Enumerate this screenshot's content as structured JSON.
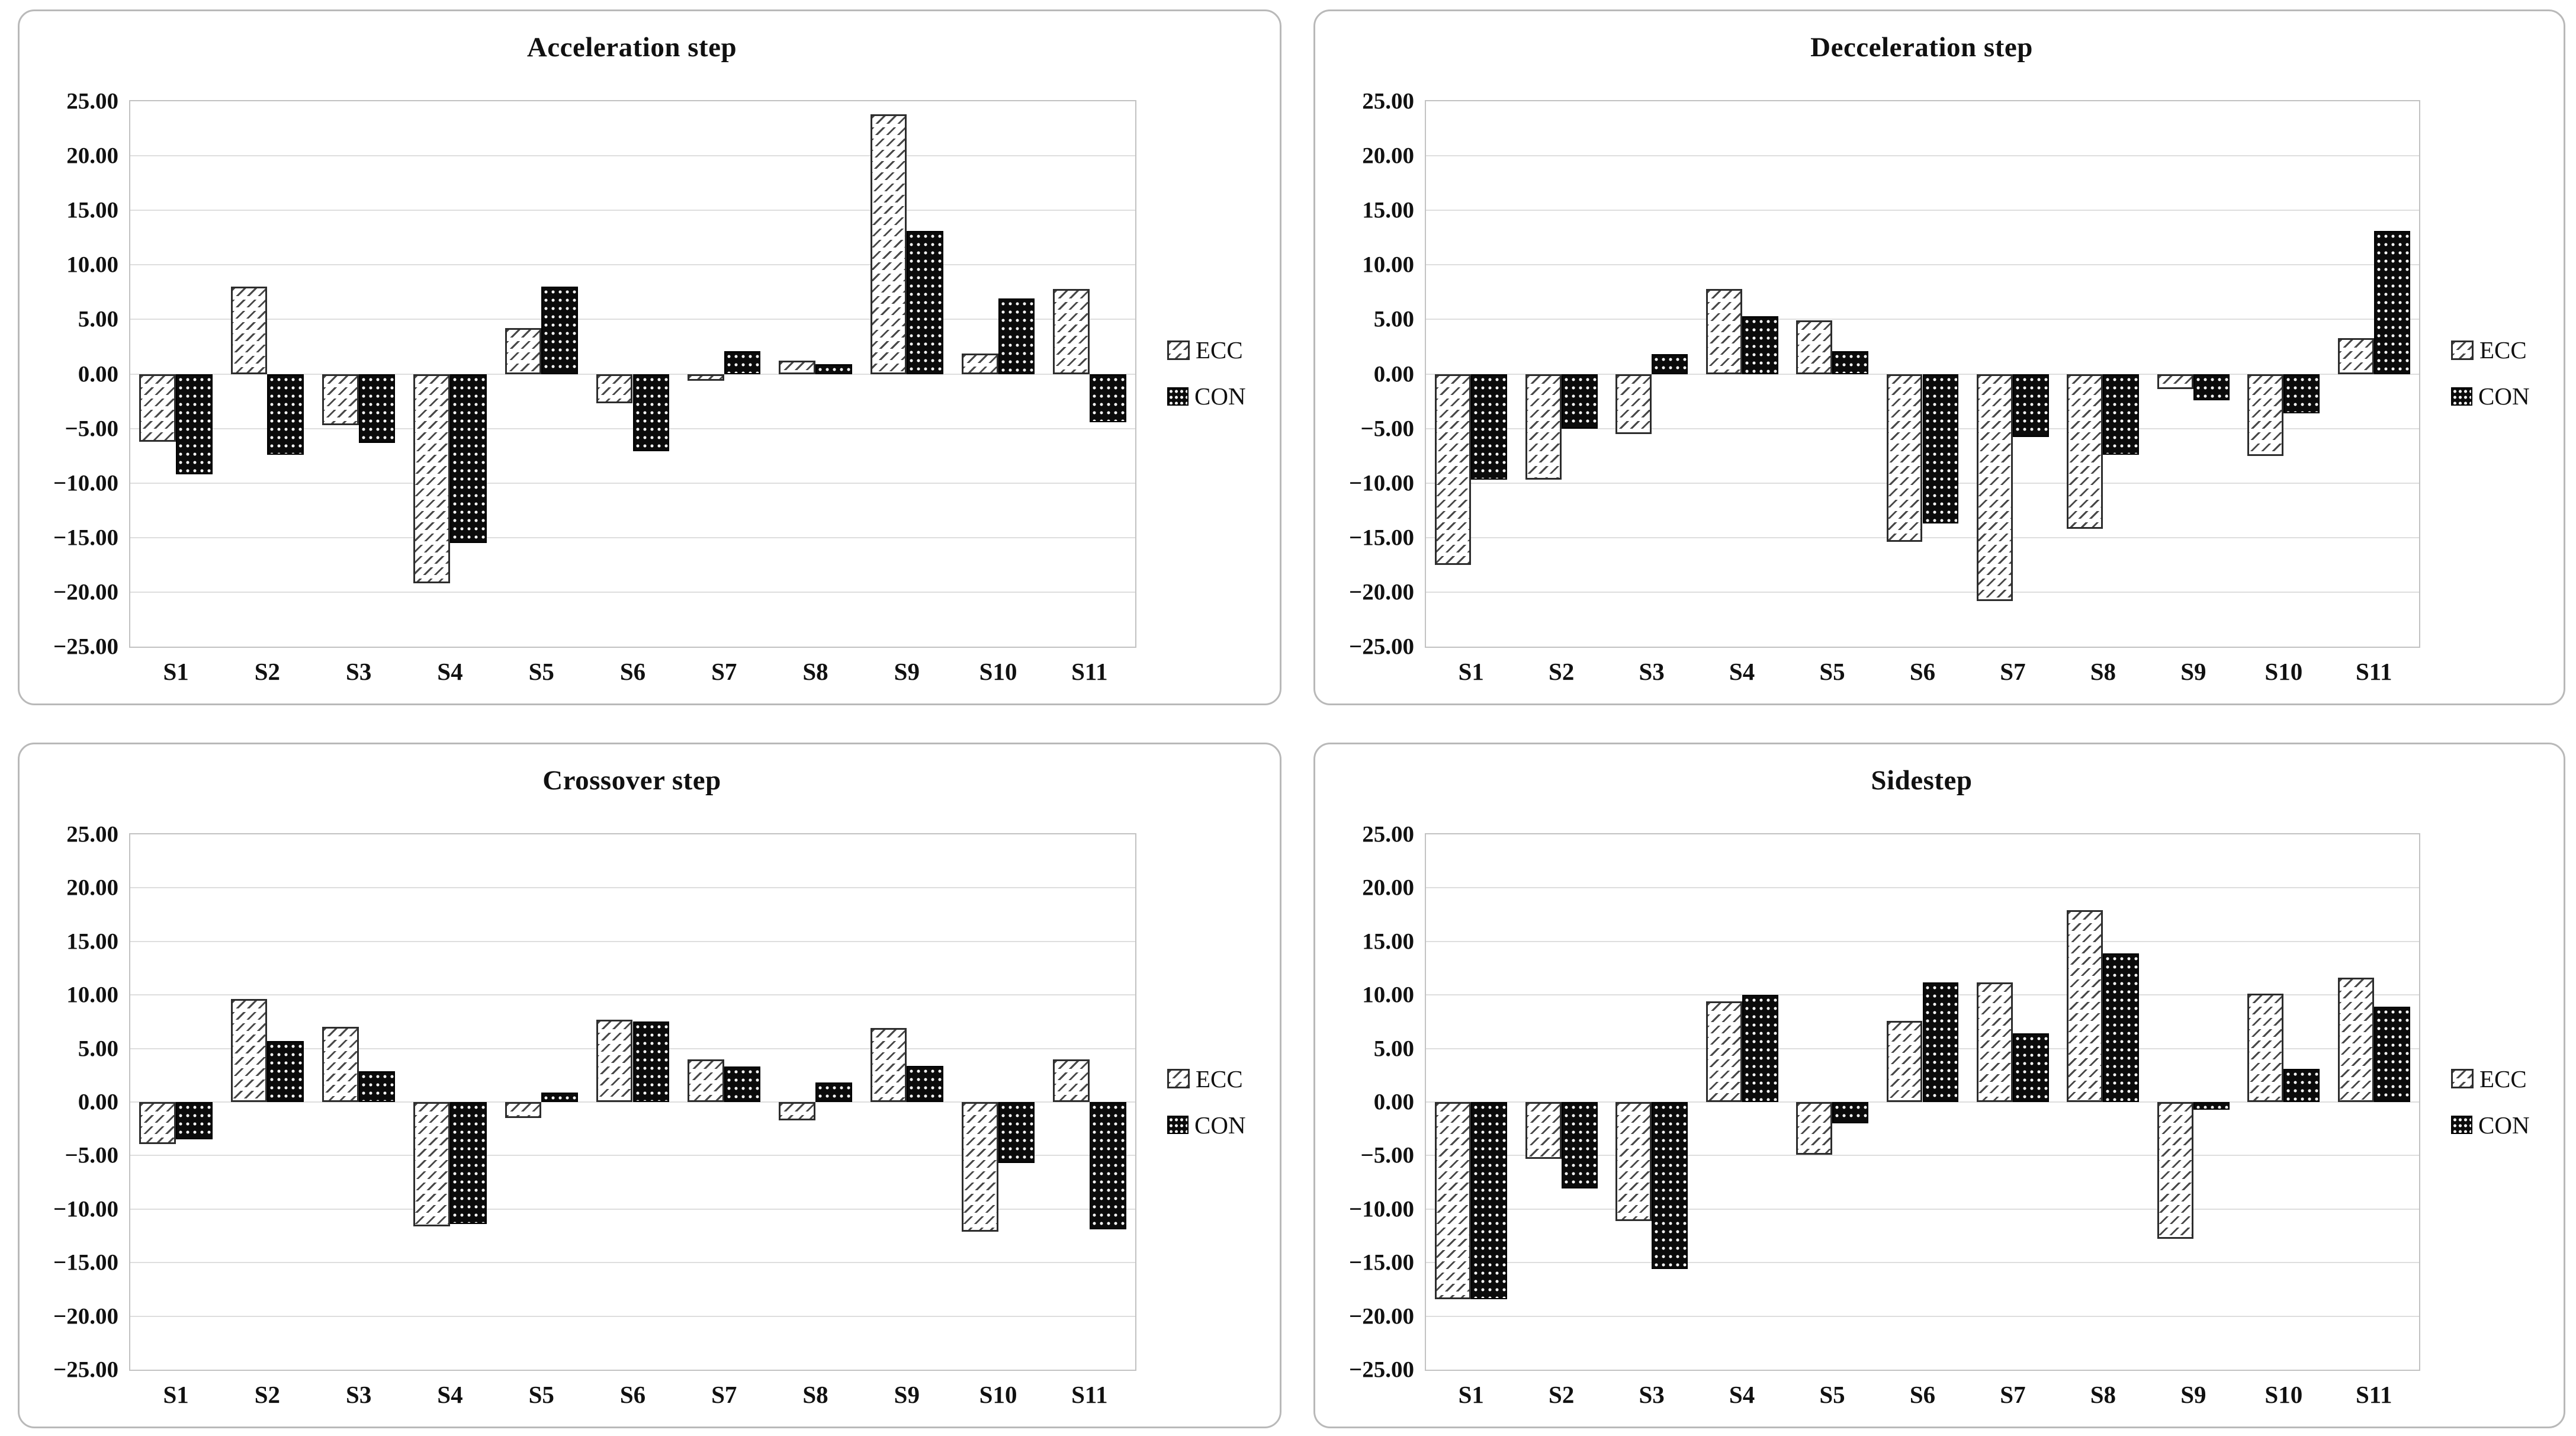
{
  "axis": {
    "ylim": [
      -25,
      25
    ],
    "y_tick_values": [
      25,
      20,
      15,
      10,
      5,
      0,
      -5,
      -10,
      -15,
      -20,
      -25
    ],
    "y_tick_labels": [
      "25.00",
      "20.00",
      "15.00",
      "10.00",
      "5.00",
      "0.00",
      "−5.00",
      "−10.00",
      "−15.00",
      "−20.00",
      "−25.00"
    ],
    "grid": true
  },
  "legend": {
    "position": "right",
    "items": [
      {
        "label": "ECC",
        "swatch": "hatched-white-square"
      },
      {
        "label": "CON",
        "swatch": "dotted-black-square"
      }
    ]
  },
  "colors": {
    "ecc_fill": "#ffffff",
    "ecc_hatch": "#474747",
    "con_fill": "#0b0b0b",
    "con_dot": "#ffffff",
    "gridline": "#dedede",
    "plot_border": "#c2c2c2",
    "card_border": "#b9b9b9",
    "text": "#111111"
  },
  "chart_data": [
    {
      "type": "bar",
      "title": "Acceleration step",
      "categories": [
        "S1",
        "S2",
        "S3",
        "S4",
        "S5",
        "S6",
        "S7",
        "S8",
        "S9",
        "S10",
        "S11"
      ],
      "series": [
        {
          "name": "ECC",
          "values": [
            -6.2,
            8.0,
            -4.7,
            -19.2,
            4.2,
            -2.7,
            -0.6,
            1.2,
            23.8,
            1.9,
            7.8
          ]
        },
        {
          "name": "CON",
          "values": [
            -9.2,
            -7.4,
            -6.3,
            -15.5,
            8.0,
            -7.1,
            2.1,
            0.9,
            13.1,
            6.9,
            -4.4
          ]
        }
      ],
      "xlabel": "",
      "ylabel": "",
      "ylim": [
        -25,
        25
      ],
      "legend_position": "right"
    },
    {
      "type": "bar",
      "title": "Decceleration step",
      "categories": [
        "S1",
        "S2",
        "S3",
        "S4",
        "S5",
        "S6",
        "S7",
        "S8",
        "S9",
        "S10",
        "S11"
      ],
      "series": [
        {
          "name": "ECC",
          "values": [
            -17.5,
            -9.7,
            -5.5,
            7.8,
            4.9,
            -15.4,
            -20.8,
            -14.2,
            -1.4,
            -7.5,
            3.3
          ]
        },
        {
          "name": "CON",
          "values": [
            -9.7,
            -5.0,
            1.8,
            5.3,
            2.1,
            -13.7,
            -5.8,
            -7.4,
            -2.4,
            -3.6,
            13.1
          ]
        }
      ],
      "xlabel": "",
      "ylabel": "",
      "ylim": [
        -25,
        25
      ],
      "legend_position": "right"
    },
    {
      "type": "bar",
      "title": "Crossover step",
      "categories": [
        "S1",
        "S2",
        "S3",
        "S4",
        "S5",
        "S6",
        "S7",
        "S8",
        "S9",
        "S10",
        "S11"
      ],
      "series": [
        {
          "name": "ECC",
          "values": [
            -3.9,
            9.6,
            7.0,
            -11.6,
            -1.5,
            7.7,
            4.0,
            -1.7,
            6.9,
            -12.1,
            4.0
          ]
        },
        {
          "name": "CON",
          "values": [
            -3.5,
            5.7,
            2.9,
            -11.4,
            0.9,
            7.5,
            3.3,
            1.8,
            3.4,
            -5.7,
            -11.9
          ]
        }
      ],
      "xlabel": "",
      "ylabel": "",
      "ylim": [
        -25,
        25
      ],
      "legend_position": "right"
    },
    {
      "type": "bar",
      "title": "Sidestep",
      "categories": [
        "S1",
        "S2",
        "S3",
        "S4",
        "S5",
        "S6",
        "S7",
        "S8",
        "S9",
        "S10",
        "S11"
      ],
      "series": [
        {
          "name": "ECC",
          "values": [
            -18.4,
            -5.3,
            -11.1,
            9.4,
            -4.9,
            7.6,
            11.2,
            17.9,
            -12.8,
            10.1,
            11.6
          ]
        },
        {
          "name": "CON",
          "values": [
            -18.4,
            -8.1,
            -15.6,
            10.0,
            -2.0,
            11.2,
            6.4,
            13.9,
            -0.7,
            3.1,
            8.9
          ]
        }
      ],
      "xlabel": "",
      "ylabel": "",
      "ylim": [
        -25,
        25
      ],
      "legend_position": "right"
    }
  ]
}
